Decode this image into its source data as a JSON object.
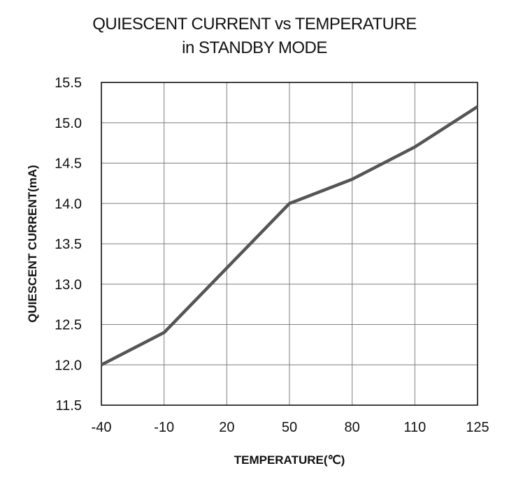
{
  "chart_data": {
    "type": "line",
    "title_line1": "QUIESCENT CURRENT vs TEMPERATURE",
    "title_line2": "in STANDBY MODE",
    "xlabel": "TEMPERATURE(℃)",
    "ylabel": "QUIESCENT CURRENT(mA)",
    "x_ticks": [
      "-40",
      "-10",
      "20",
      "50",
      "80",
      "110",
      "125"
    ],
    "y_ticks": [
      "15.5",
      "15.0",
      "14.5",
      "14.0",
      "13.5",
      "13.0",
      "12.5",
      "12.0",
      "11.5"
    ],
    "ylim": [
      11.5,
      15.5
    ],
    "grid": true,
    "series": [
      {
        "x": [
          "-40",
          "-10",
          "20",
          "50",
          "80",
          "110",
          "125"
        ],
        "values": [
          12.0,
          12.4,
          13.2,
          14.0,
          14.3,
          14.7,
          15.2
        ]
      }
    ],
    "colors": {
      "line": "#555555",
      "grid": "#7f7f7f",
      "axis": "#000000"
    }
  }
}
